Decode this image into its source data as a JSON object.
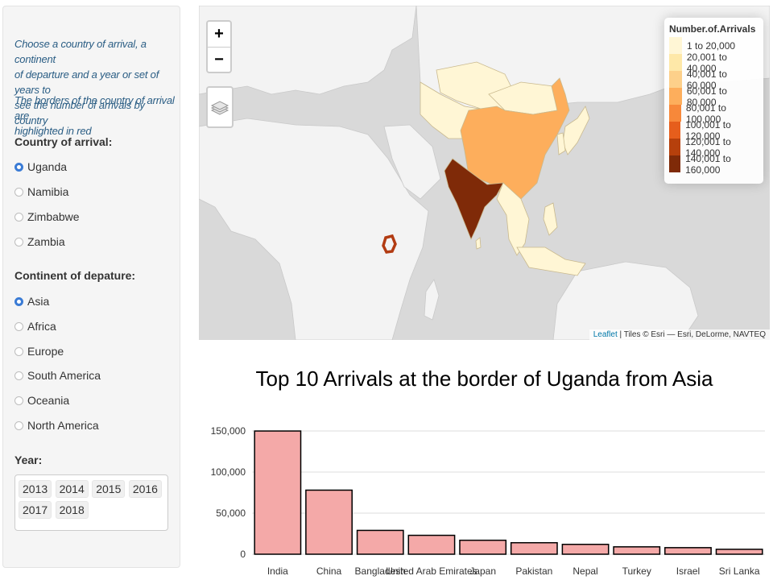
{
  "sidebar": {
    "intro1_lines": [
      "Choose a country of arrival, a continent",
      "of departure and a year or set of years to",
      "see the number of arrivals by country"
    ],
    "intro2_lines": [
      "The borders of the country of arrival are",
      "highlighted in red"
    ],
    "country_label": "Country of arrival:",
    "countries": [
      {
        "label": "Uganda",
        "checked": true
      },
      {
        "label": "Namibia",
        "checked": false
      },
      {
        "label": "Zimbabwe",
        "checked": false
      },
      {
        "label": "Zambia",
        "checked": false
      }
    ],
    "continent_label": "Continent of depature:",
    "continents": [
      {
        "label": "Asia",
        "checked": true
      },
      {
        "label": "Africa",
        "checked": false
      },
      {
        "label": "Europe",
        "checked": false
      },
      {
        "label": "South America",
        "checked": false
      },
      {
        "label": "Oceania",
        "checked": false
      },
      {
        "label": "North America",
        "checked": false
      }
    ],
    "year_label": "Year:",
    "years": [
      "2013",
      "2014",
      "2015",
      "2016",
      "2017",
      "2018"
    ]
  },
  "map": {
    "zoom_in": "+",
    "zoom_out": "−",
    "legend": {
      "title": "Number.of.Arrivals",
      "items": [
        {
          "label": "1 to 20,000",
          "color": "#fff6d5"
        },
        {
          "label": "20,001 to 40,000",
          "color": "#fee8a8"
        },
        {
          "label": "40,001 to 60,000",
          "color": "#fdd08a"
        },
        {
          "label": "60,001 to 80,000",
          "color": "#fdae5c"
        },
        {
          "label": "80,001 to 100,000",
          "color": "#f7883a"
        },
        {
          "label": "100,001 to 120,000",
          "color": "#e65e1c"
        },
        {
          "label": "120,001 to 140,000",
          "color": "#b6400c"
        },
        {
          "label": "140,001 to 160,000",
          "color": "#7f2a08"
        }
      ]
    },
    "attribution_link": "Leaflet",
    "attribution_text": " | Tiles © Esri — Esri, DeLorme, NAVTEQ",
    "colors": {
      "ocean": "#d9d9d9",
      "land": "#f3f3f3",
      "border": "#c9c9c9",
      "highlight": "#b23b12"
    }
  },
  "chart_data": {
    "type": "bar",
    "title": "Top 10 Arrivals at the border of Uganda from Asia",
    "categories": [
      "India",
      "China",
      "Bangladesh",
      "United Arab Emirates",
      "Japan",
      "Pakistan",
      "Nepal",
      "Turkey",
      "Israel",
      "Sri Lanka"
    ],
    "values": [
      150000,
      78000,
      29000,
      23000,
      17000,
      14000,
      12000,
      9000,
      8000,
      6000
    ],
    "ytick_labels": [
      "0",
      "50,000",
      "100,000",
      "150,000"
    ],
    "yticks": [
      0,
      50000,
      100000,
      150000
    ],
    "ylim": [
      0,
      152000
    ],
    "bar_color": "#f4a9a8",
    "bar_edge": "#000000"
  }
}
